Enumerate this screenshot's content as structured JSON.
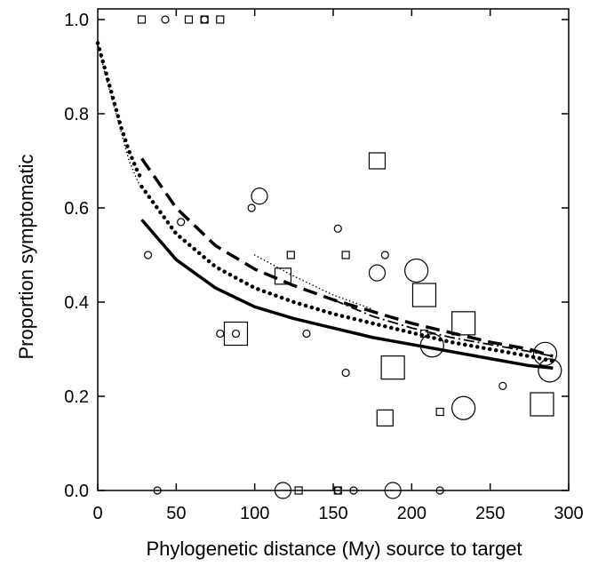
{
  "chart_data": {
    "type": "scatter",
    "title": "",
    "xlabel": "Phylogenetic distance (My) source to target",
    "ylabel": "Proportion symptomatic",
    "xlim": [
      0,
      300
    ],
    "ylim": [
      0,
      1.0
    ],
    "x_ticks": [
      0,
      50,
      100,
      150,
      200,
      250,
      300
    ],
    "y_ticks": [
      0.0,
      0.2,
      0.4,
      0.6,
      0.8,
      1.0
    ],
    "x_tick_labels": [
      "0",
      "50",
      "100",
      "150",
      "200",
      "250",
      "300"
    ],
    "y_tick_labels": [
      "0.0",
      "0.2",
      "0.4",
      "0.6",
      "0.8",
      "1.0"
    ],
    "grid": false,
    "colors": {
      "marker": "#000000",
      "line": "#000000",
      "background": "#ffffff"
    },
    "points": [
      {
        "x": 28,
        "y": 1.0,
        "shape": "square",
        "size": 1
      },
      {
        "x": 43,
        "y": 1.0,
        "shape": "circle",
        "size": 1
      },
      {
        "x": 58,
        "y": 1.0,
        "shape": "square",
        "size": 1
      },
      {
        "x": 68,
        "y": 1.0,
        "shape": "square",
        "size": 1
      },
      {
        "x": 68,
        "y": 1.0,
        "shape": "circle",
        "size": 1
      },
      {
        "x": 78,
        "y": 1.0,
        "shape": "square",
        "size": 1
      },
      {
        "x": 32,
        "y": 0.5,
        "shape": "circle",
        "size": 1
      },
      {
        "x": 53,
        "y": 0.57,
        "shape": "circle",
        "size": 1
      },
      {
        "x": 98,
        "y": 0.6,
        "shape": "circle",
        "size": 1
      },
      {
        "x": 103,
        "y": 0.625,
        "shape": "circle",
        "size": 2
      },
      {
        "x": 78,
        "y": 0.333,
        "shape": "circle",
        "size": 1
      },
      {
        "x": 88,
        "y": 0.333,
        "shape": "circle",
        "size": 1
      },
      {
        "x": 88,
        "y": 0.333,
        "shape": "square",
        "size": 3
      },
      {
        "x": 118,
        "y": 0.455,
        "shape": "square",
        "size": 2
      },
      {
        "x": 123,
        "y": 0.5,
        "shape": "square",
        "size": 1
      },
      {
        "x": 133,
        "y": 0.333,
        "shape": "circle",
        "size": 1
      },
      {
        "x": 153,
        "y": 0.556,
        "shape": "circle",
        "size": 1
      },
      {
        "x": 158,
        "y": 0.5,
        "shape": "square",
        "size": 1
      },
      {
        "x": 158,
        "y": 0.25,
        "shape": "circle",
        "size": 1
      },
      {
        "x": 178,
        "y": 0.7,
        "shape": "square",
        "size": 2
      },
      {
        "x": 178,
        "y": 0.462,
        "shape": "circle",
        "size": 2
      },
      {
        "x": 183,
        "y": 0.5,
        "shape": "circle",
        "size": 1
      },
      {
        "x": 183,
        "y": 0.154,
        "shape": "square",
        "size": 2
      },
      {
        "x": 188,
        "y": 0.261,
        "shape": "square",
        "size": 3
      },
      {
        "x": 203,
        "y": 0.467,
        "shape": "circle",
        "size": 3
      },
      {
        "x": 208,
        "y": 0.415,
        "shape": "square",
        "size": 3
      },
      {
        "x": 208,
        "y": 0.333,
        "shape": "square",
        "size": 1
      },
      {
        "x": 213,
        "y": 0.308,
        "shape": "circle",
        "size": 3
      },
      {
        "x": 218,
        "y": 0.167,
        "shape": "square",
        "size": 1
      },
      {
        "x": 233,
        "y": 0.355,
        "shape": "square",
        "size": 3
      },
      {
        "x": 233,
        "y": 0.175,
        "shape": "circle",
        "size": 3
      },
      {
        "x": 258,
        "y": 0.222,
        "shape": "circle",
        "size": 1
      },
      {
        "x": 283,
        "y": 0.183,
        "shape": "square",
        "size": 3
      },
      {
        "x": 285,
        "y": 0.29,
        "shape": "circle",
        "size": 3
      },
      {
        "x": 288,
        "y": 0.255,
        "shape": "circle",
        "size": 3
      },
      {
        "x": 38,
        "y": 0.0,
        "shape": "circle",
        "size": 1
      },
      {
        "x": 118,
        "y": 0.0,
        "shape": "circle",
        "size": 2
      },
      {
        "x": 128,
        "y": 0.0,
        "shape": "square",
        "size": 1
      },
      {
        "x": 153,
        "y": 0.0,
        "shape": "square",
        "size": 1
      },
      {
        "x": 153,
        "y": 0.0,
        "shape": "circle",
        "size": 1
      },
      {
        "x": 163,
        "y": 0.0,
        "shape": "circle",
        "size": 1
      },
      {
        "x": 188,
        "y": 0.0,
        "shape": "circle",
        "size": 2
      },
      {
        "x": 218,
        "y": 0.0,
        "shape": "circle",
        "size": 1
      }
    ],
    "curves": [
      {
        "style": "solid",
        "x": [
          28,
          50,
          75,
          100,
          125,
          150,
          175,
          200,
          225,
          250,
          275,
          290
        ],
        "y": [
          0.575,
          0.49,
          0.43,
          0.39,
          0.365,
          0.345,
          0.325,
          0.31,
          0.295,
          0.28,
          0.265,
          0.26
        ]
      },
      {
        "style": "dotted",
        "x": [
          28,
          50,
          75,
          100,
          125,
          150,
          175,
          200,
          225,
          250,
          275,
          290
        ],
        "y": [
          0.645,
          0.545,
          0.475,
          0.43,
          0.4,
          0.375,
          0.355,
          0.335,
          0.315,
          0.3,
          0.285,
          0.275
        ]
      },
      {
        "style": "dashed",
        "x": [
          28,
          50,
          75,
          100,
          125,
          150,
          175,
          200,
          225,
          250,
          275,
          290
        ],
        "y": [
          0.705,
          0.6,
          0.52,
          0.47,
          0.435,
          0.405,
          0.38,
          0.355,
          0.335,
          0.315,
          0.3,
          0.285
        ]
      },
      {
        "style": "dashdot",
        "x": [
          150,
          175,
          200,
          225,
          250,
          275,
          290
        ],
        "y": [
          0.405,
          0.37,
          0.345,
          0.325,
          0.31,
          0.295,
          0.285
        ]
      },
      {
        "style": "thin-dotted",
        "x": [
          0,
          5,
          10,
          15,
          20,
          25,
          28
        ],
        "y": [
          0.95,
          0.88,
          0.82,
          0.76,
          0.7,
          0.66,
          0.64
        ]
      },
      {
        "style": "dotted",
        "x": [
          0,
          5,
          10,
          15,
          20,
          25,
          28
        ],
        "y": [
          0.95,
          0.89,
          0.83,
          0.77,
          0.72,
          0.68,
          0.66
        ]
      },
      {
        "style": "thin-dotted",
        "x": [
          100,
          125,
          150,
          175
        ],
        "y": [
          0.5,
          0.455,
          0.415,
          0.385
        ]
      }
    ]
  }
}
